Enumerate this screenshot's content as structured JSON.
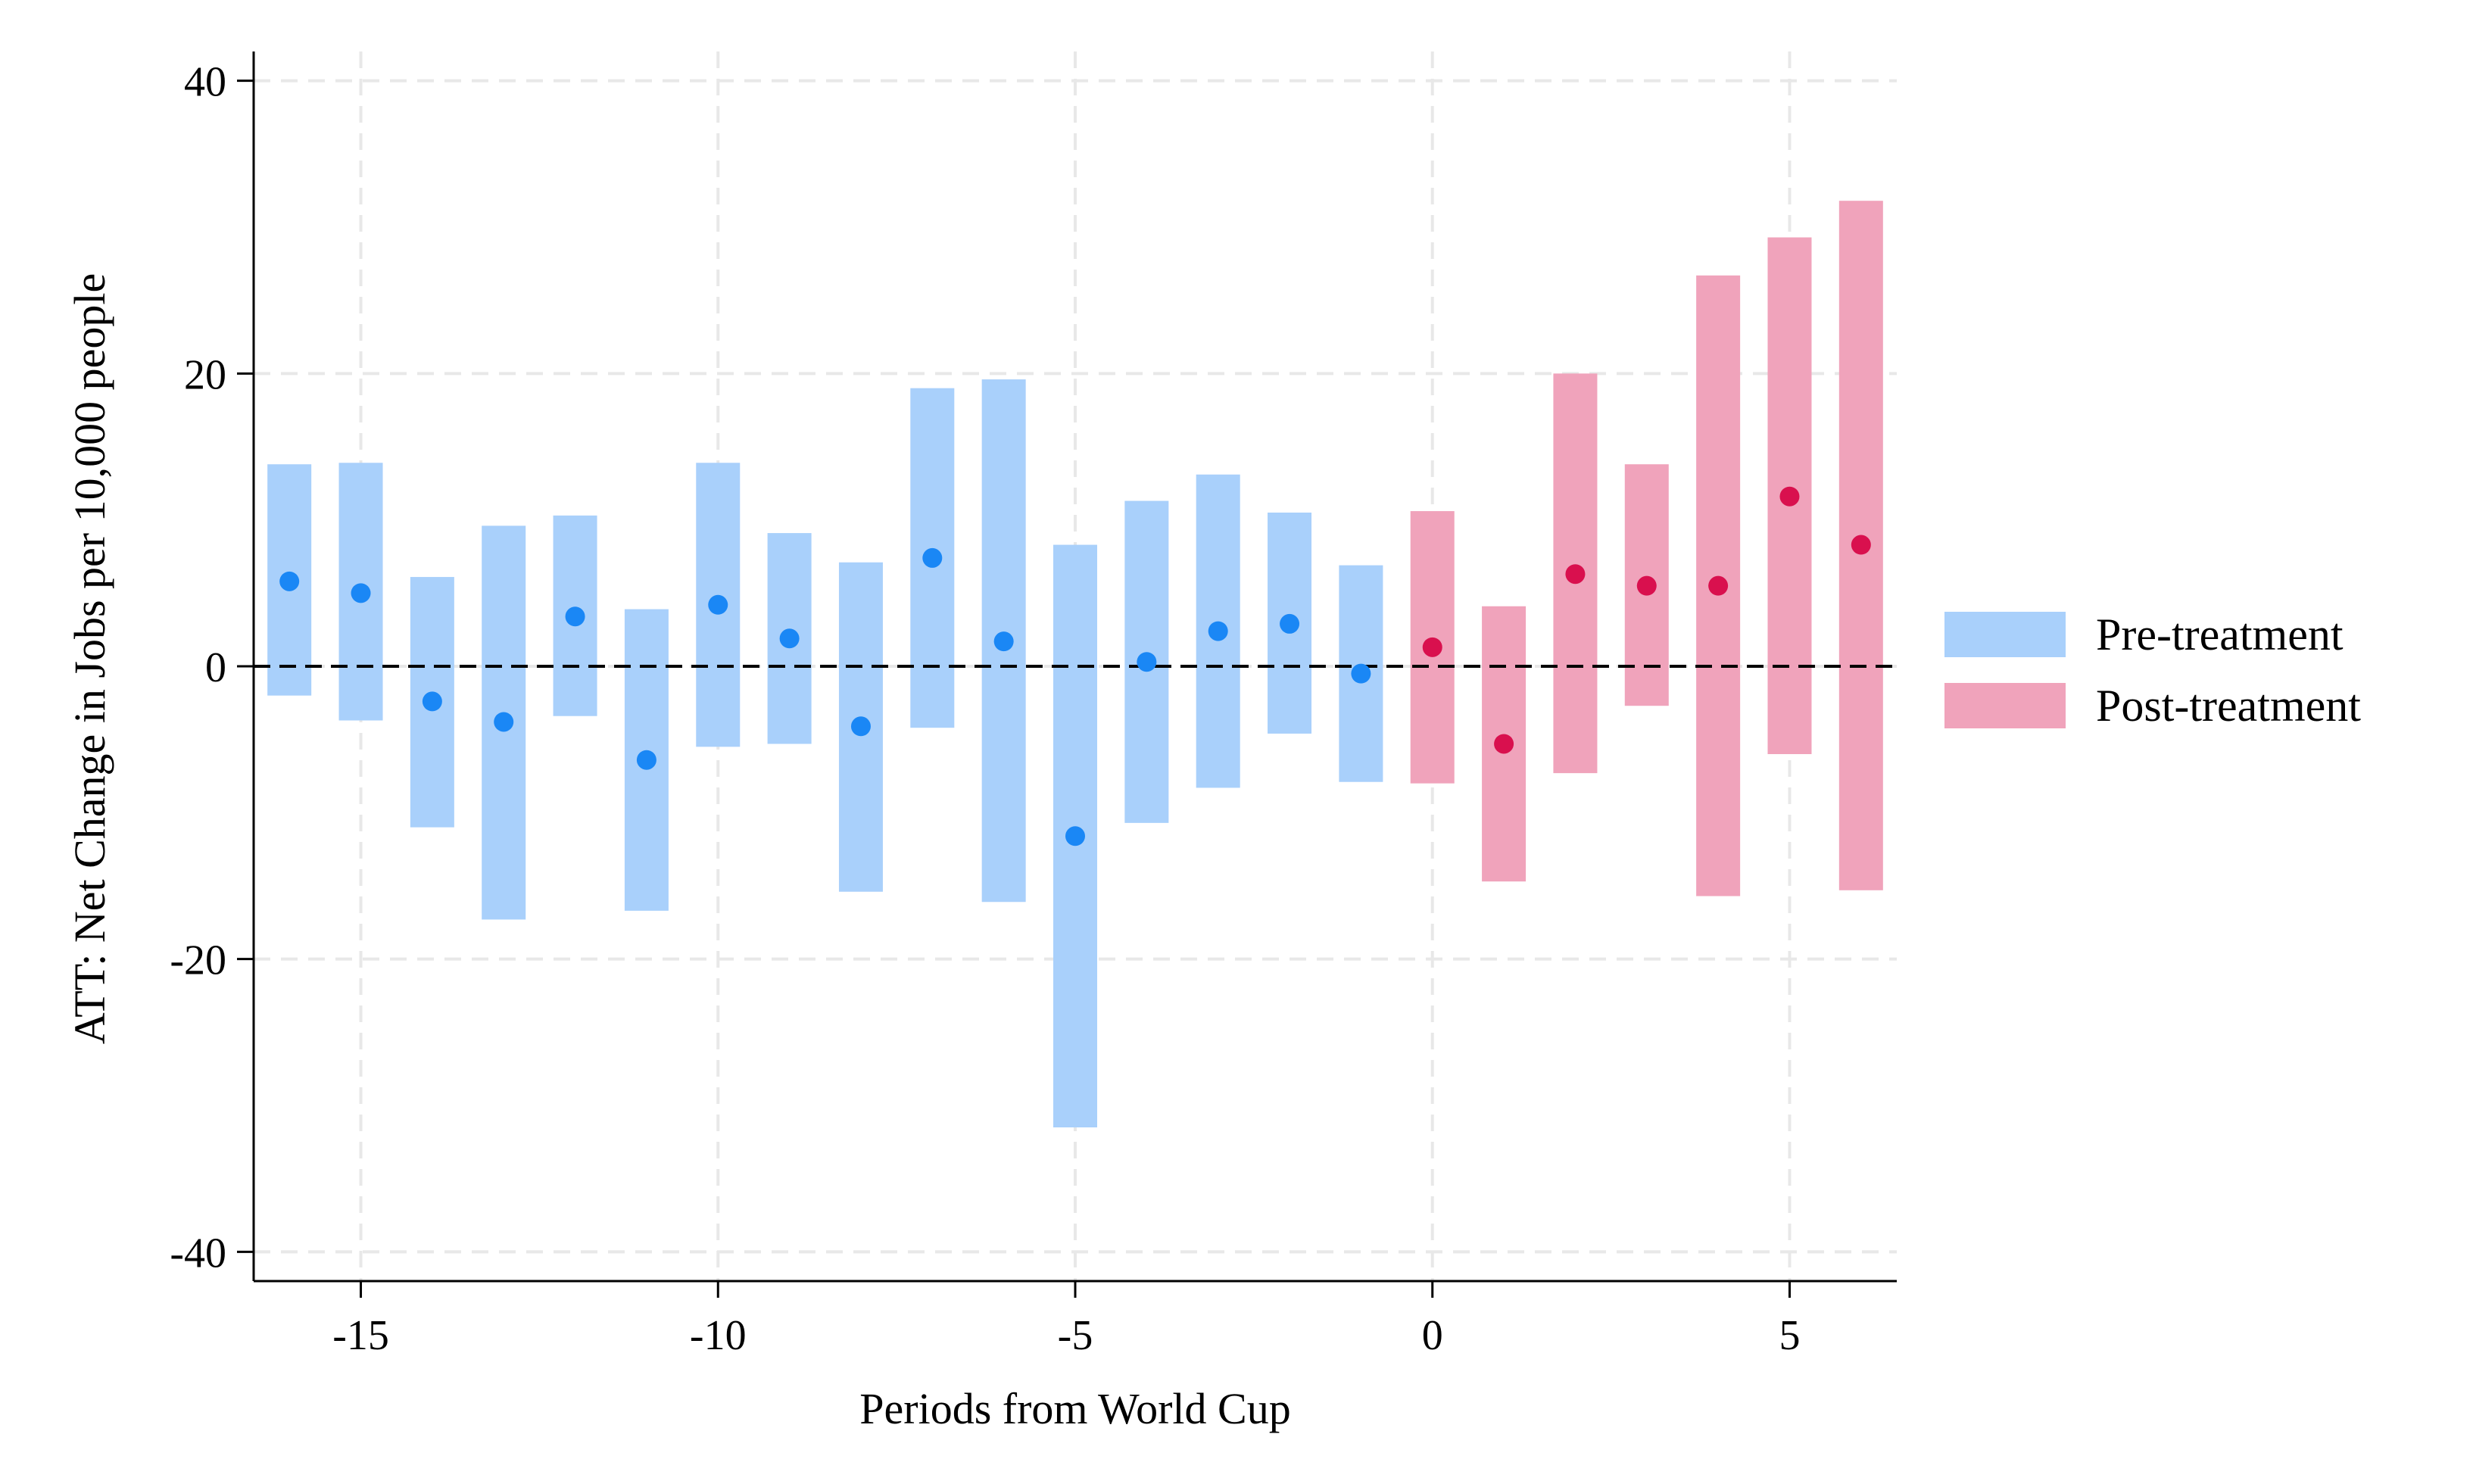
{
  "chart_data": {
    "type": "scatter",
    "subtype": "event-study point estimates with confidence interval bars",
    "title": "",
    "xlabel": "Periods from World Cup",
    "ylabel": "ATT: Net Change in Jobs per 10,000 people",
    "xlim": [
      -16.5,
      6.5
    ],
    "ylim": [
      -42,
      42
    ],
    "xticks": [
      -15,
      -10,
      -5,
      0,
      5
    ],
    "yticks": [
      -40,
      -20,
      0,
      20,
      40
    ],
    "grid": "dashed, at major ticks",
    "reference_line": {
      "y": 0,
      "style": "dashed"
    },
    "legend_position": "right",
    "series": [
      {
        "name": "Pre-treatment",
        "color": "#a9d0fb",
        "point_color": "#1a87f5",
        "points": [
          {
            "x": -16,
            "y": 5.8,
            "lo": -2.0,
            "hi": 13.8
          },
          {
            "x": -15,
            "y": 5.0,
            "lo": -3.7,
            "hi": 13.9
          },
          {
            "x": -14,
            "y": -2.4,
            "lo": -11.0,
            "hi": 6.1
          },
          {
            "x": -13,
            "y": -3.8,
            "lo": -17.3,
            "hi": 9.6
          },
          {
            "x": -12,
            "y": 3.4,
            "lo": -3.4,
            "hi": 10.3
          },
          {
            "x": -11,
            "y": -6.4,
            "lo": -16.7,
            "hi": 3.9
          },
          {
            "x": -10,
            "y": 4.2,
            "lo": -5.5,
            "hi": 13.9
          },
          {
            "x": -9,
            "y": 1.9,
            "lo": -5.3,
            "hi": 9.1
          },
          {
            "x": -8,
            "y": -4.1,
            "lo": -15.4,
            "hi": 7.1
          },
          {
            "x": -7,
            "y": 7.4,
            "lo": -4.2,
            "hi": 19.0
          },
          {
            "x": -6,
            "y": 1.7,
            "lo": -16.1,
            "hi": 19.6
          },
          {
            "x": -5,
            "y": -11.6,
            "lo": -31.5,
            "hi": 8.3
          },
          {
            "x": -4,
            "y": 0.3,
            "lo": -10.7,
            "hi": 11.3
          },
          {
            "x": -3,
            "y": 2.4,
            "lo": -8.3,
            "hi": 13.1
          },
          {
            "x": -2,
            "y": 2.9,
            "lo": -4.6,
            "hi": 10.5
          },
          {
            "x": -1,
            "y": -0.5,
            "lo": -7.9,
            "hi": 6.9
          }
        ]
      },
      {
        "name": "Post-treatment",
        "color": "#f0a3bb",
        "point_color": "#d9104e",
        "points": [
          {
            "x": 0,
            "y": 1.3,
            "lo": -8.0,
            "hi": 10.6
          },
          {
            "x": 1,
            "y": -5.3,
            "lo": -14.7,
            "hi": 4.1
          },
          {
            "x": 2,
            "y": 6.3,
            "lo": -7.3,
            "hi": 20.0
          },
          {
            "x": 3,
            "y": 5.5,
            "lo": -2.7,
            "hi": 13.8
          },
          {
            "x": 4,
            "y": 5.5,
            "lo": -15.7,
            "hi": 26.7
          },
          {
            "x": 5,
            "y": 11.6,
            "lo": -6.0,
            "hi": 29.3
          },
          {
            "x": 6,
            "y": 8.3,
            "lo": -15.3,
            "hi": 31.8
          }
        ]
      }
    ]
  }
}
